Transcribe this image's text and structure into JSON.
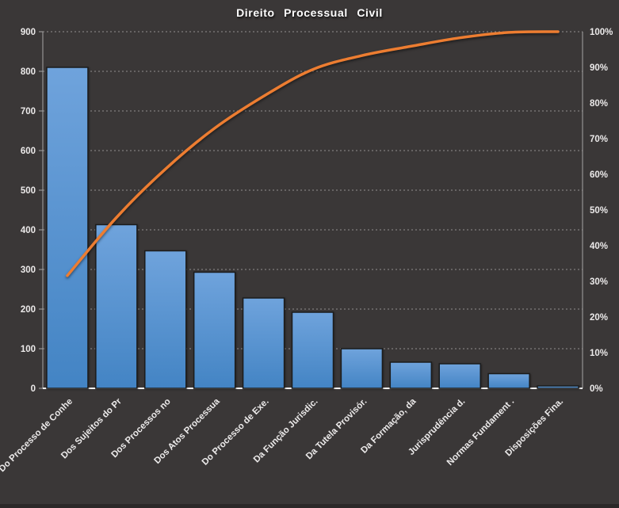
{
  "window": {
    "background": "#3A3737"
  },
  "chart_data": {
    "type": "bar",
    "subtype": "pareto-column-with-cumulative-percent-line",
    "title": "Direito Processual Civil",
    "legend": "none",
    "grid": "dashed horizontal gridlines at left-axis major steps",
    "categories": [
      "Do Processo de Conhe",
      "Dos Sujeitos do Pr",
      "Dos Processos no",
      "Dos Atos Processua",
      "Do Processo de Exe.",
      "Da Função Jurisdic.",
      "Da Tutela Provisór.",
      "Da Formação, da",
      "Jurisprudência d.",
      "Normas Fundament .",
      "Disposições Fina."
    ],
    "series": [
      {
        "id": "frequency-columns",
        "type": "column",
        "axis": "left",
        "values": [
          810,
          413,
          347,
          293,
          228,
          192,
          100,
          66,
          62,
          37,
          6
        ]
      },
      {
        "id": "cumulative-line",
        "type": "line",
        "axis": "right",
        "values_percent": [
          31.6,
          47.9,
          61.5,
          72.9,
          81.9,
          89.4,
          93.3,
          95.9,
          98.3,
          99.8,
          100
        ]
      }
    ],
    "left_axis": {
      "min": 0,
      "max": 900,
      "step": 100,
      "tick_labels": [
        "900",
        "800",
        "700",
        "600",
        "500",
        "400",
        "300",
        "200",
        "100",
        "0"
      ]
    },
    "right_axis": {
      "min": 0,
      "max": 100,
      "step": 10,
      "tick_labels": [
        "100%",
        "90%",
        "80%",
        "70%",
        "60%",
        "50%",
        "40%",
        "30%",
        "20%",
        "10%",
        "0%"
      ]
    },
    "colors": {
      "background": "#3A3737",
      "bar_gradient_top": "#6FA3DC",
      "bar_gradient_bottom": "#4384C4",
      "bar_outline": "#1C1C1C",
      "line": "#ED7D31",
      "gridline": "#D9D9D9",
      "axis_line": "#A6A6A6",
      "baseline": "#F2F2F2",
      "text": "#ECEAEA"
    }
  }
}
